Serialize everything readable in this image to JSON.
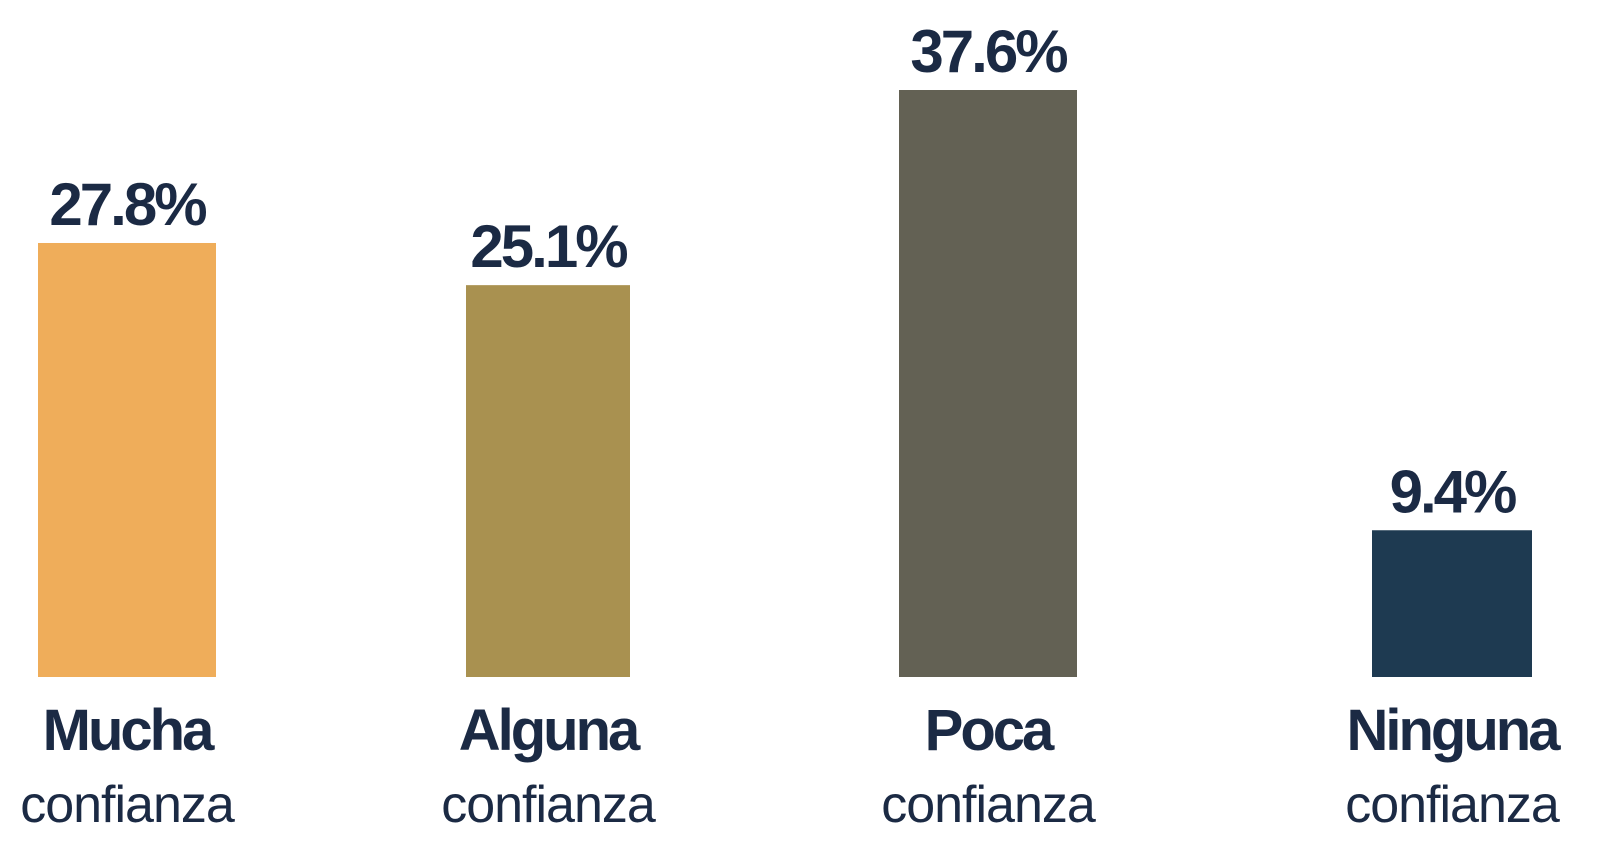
{
  "chart_data": {
    "type": "bar",
    "categories": [
      [
        "Mucha",
        "confianza"
      ],
      [
        "Alguna",
        "confianza"
      ],
      [
        "Poca",
        "confianza"
      ],
      [
        "Ninguna",
        "confianza"
      ]
    ],
    "values": [
      27.8,
      25.1,
      37.6,
      9.4
    ],
    "value_labels": [
      "27.8%",
      "25.1%",
      "37.6%",
      "9.4%"
    ],
    "colors": [
      "#efad5a",
      "#a99150",
      "#636154",
      "#1e3a51"
    ]
  }
}
